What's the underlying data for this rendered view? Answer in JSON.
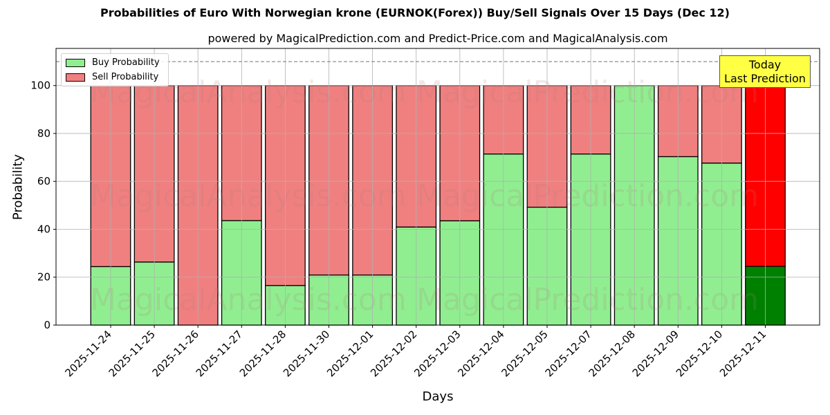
{
  "title": "Probabilities of Euro With Norwegian krone (EURNOK(Forex)) Buy/Sell Signals Over 15 Days (Dec 12)",
  "subtitle": "powered by MagicalPrediction.com and Predict-Price.com and MagicalAnalysis.com",
  "legend": {
    "buy_label": "Buy Probability",
    "sell_label": "Sell Probability"
  },
  "annotation": {
    "line1": "Today",
    "line2": "Last Prediction"
  },
  "watermarks": [
    "MagicalAnalysis.com",
    "MagicalPrediction.com"
  ],
  "colors": {
    "buy": "#90ee90",
    "sell": "#f08080",
    "today_buy": "#008000",
    "today_sell": "#ff0000",
    "annotation_bg": "#ffff44"
  },
  "chart_data": {
    "type": "bar",
    "stacked": true,
    "title": "Probabilities of Euro With Norwegian krone (EURNOK(Forex)) Buy/Sell Signals Over 15 Days (Dec 12)",
    "subtitle": "powered by MagicalPrediction.com and Predict-Price.com and MagicalAnalysis.com",
    "xlabel": "Days",
    "ylabel": "Probability",
    "ylim": [
      0,
      115.5
    ],
    "yticks": [
      0,
      20,
      40,
      60,
      80,
      100
    ],
    "grid": true,
    "legend_position": "upper left",
    "reference_line": {
      "y": 110,
      "style": "dashed",
      "color": "#808080"
    },
    "categories": [
      "2025-11-24",
      "2025-11-25",
      "2025-11-26",
      "2025-11-27",
      "2025-11-28",
      "2025-11-30",
      "2025-12-01",
      "2025-12-02",
      "2025-12-03",
      "2025-12-04",
      "2025-12-05",
      "2025-12-07",
      "2025-12-08",
      "2025-12-09",
      "2025-12-10",
      "2025-12-11"
    ],
    "series": [
      {
        "name": "Buy Probability",
        "values": [
          24.4,
          26.3,
          0,
          43.6,
          16.5,
          20.9,
          20.9,
          40.9,
          43.5,
          71.4,
          49.2,
          71.4,
          100,
          70.3,
          67.6,
          24.5
        ]
      },
      {
        "name": "Sell Probability",
        "values": [
          75.6,
          73.7,
          100,
          56.4,
          83.5,
          79.1,
          79.1,
          59.1,
          56.5,
          28.6,
          50.8,
          28.6,
          0,
          29.7,
          32.4,
          75.5
        ]
      }
    ],
    "highlight_last": {
      "label": "Today\nLast Prediction",
      "buy_color": "#008000",
      "sell_color": "#ff0000"
    }
  }
}
